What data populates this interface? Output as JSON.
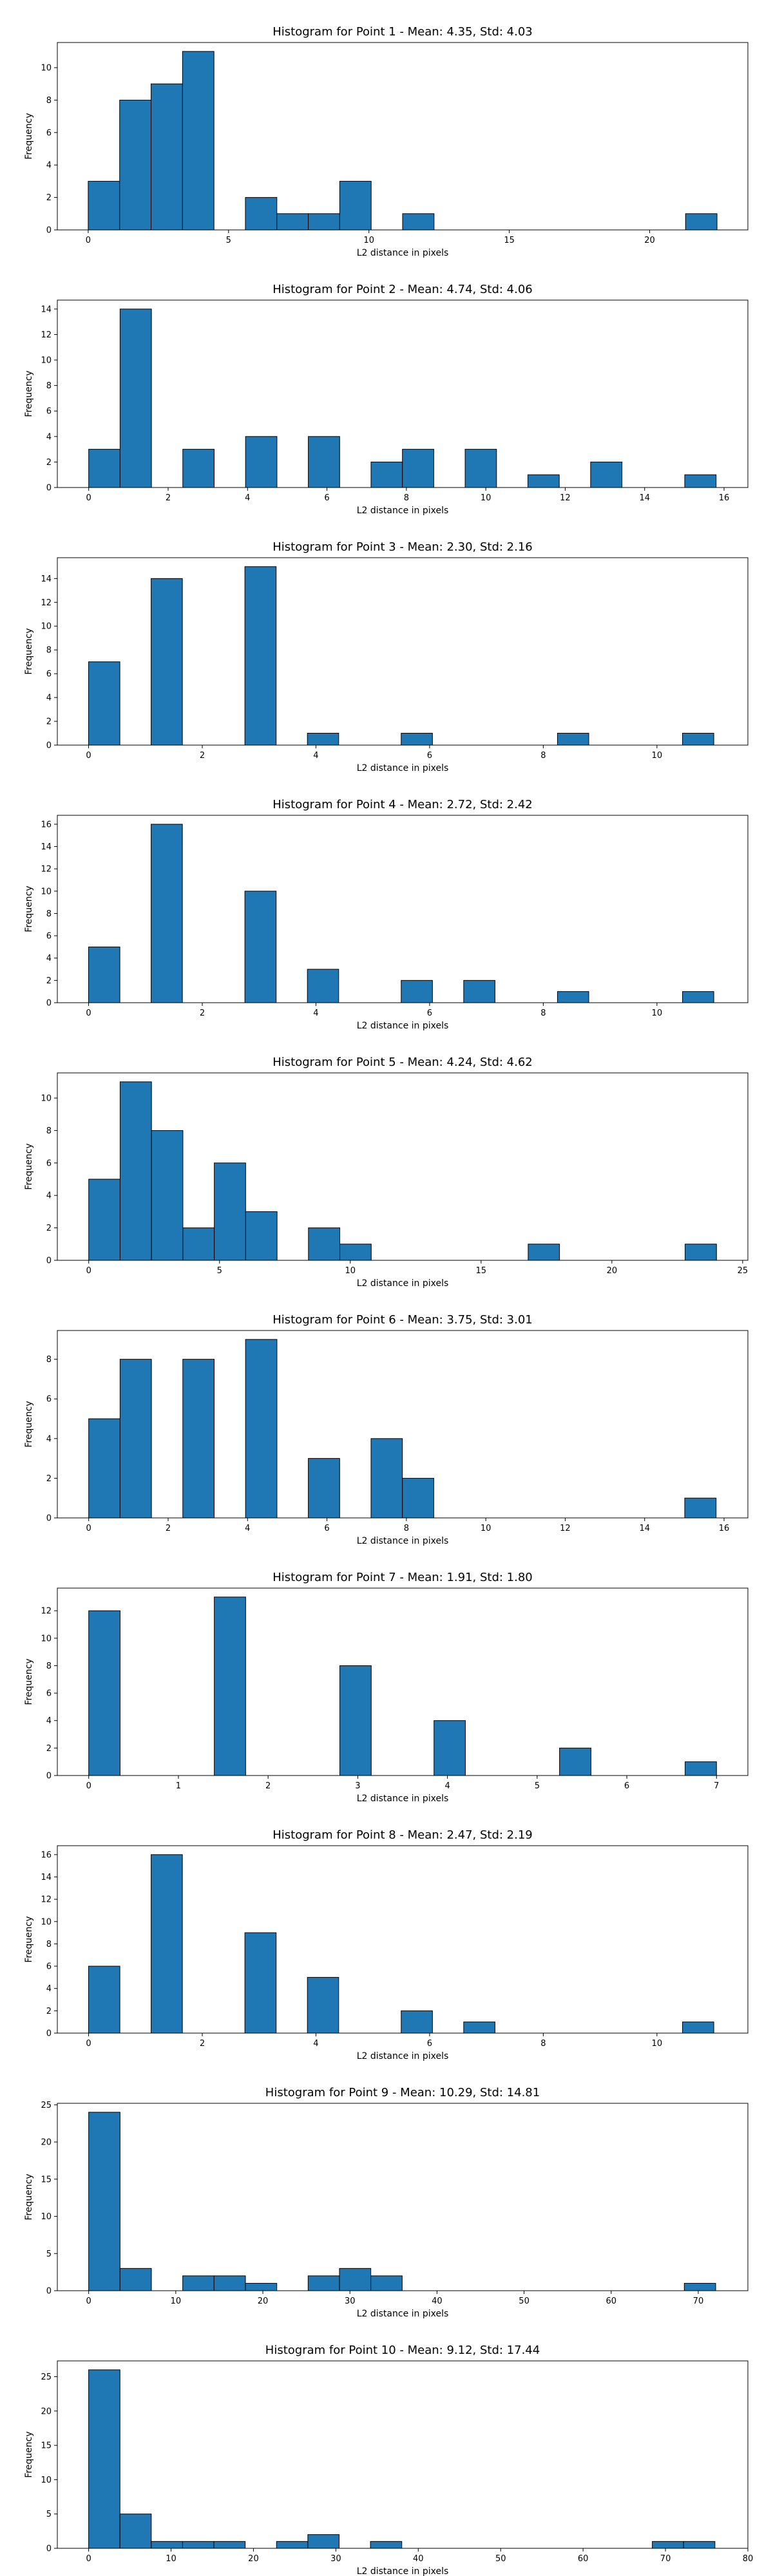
{
  "colors": {
    "bar_fill": "#1f77b4",
    "bar_edge": "#000000",
    "background": "#ffffff"
  },
  "chart_data": [
    {
      "type": "bar",
      "title": "Histogram for Point 1 - Mean: 4.35, Std: 4.03",
      "xlabel": "L2 distance in pixels",
      "ylabel": "Frequency",
      "xlim": [
        -1.1,
        23.5
      ],
      "ylim": [
        0,
        11.55
      ],
      "xticks": [
        0,
        5,
        10,
        15,
        20
      ],
      "yticks": [
        0,
        2,
        4,
        6,
        8,
        10
      ],
      "bin_edges": [
        0,
        1.12,
        2.24,
        3.36,
        4.48,
        5.6,
        6.72,
        7.84,
        8.96,
        10.08,
        11.2,
        12.32,
        13.44,
        14.56,
        15.68,
        16.8,
        17.92,
        19.04,
        20.16,
        21.28,
        22.4
      ],
      "values": [
        3,
        8,
        9,
        11,
        0,
        2,
        1,
        1,
        3,
        0,
        1,
        0,
        0,
        0,
        0,
        0,
        0,
        0,
        0,
        1
      ]
    },
    {
      "type": "bar",
      "title": "Histogram for Point 2 - Mean: 4.74, Std: 4.06",
      "xlabel": "L2 distance in pixels",
      "ylabel": "Frequency",
      "xlim": [
        -0.79,
        16.6
      ],
      "ylim": [
        0,
        14.7
      ],
      "xticks": [
        0,
        2,
        4,
        6,
        8,
        10,
        12,
        14,
        16
      ],
      "yticks": [
        0,
        2,
        4,
        6,
        8,
        10,
        12,
        14
      ],
      "bin_edges": [
        0,
        0.79,
        1.58,
        2.37,
        3.16,
        3.95,
        4.74,
        5.53,
        6.32,
        7.11,
        7.9,
        8.69,
        9.48,
        10.27,
        11.06,
        11.85,
        12.64,
        13.43,
        14.22,
        15.01,
        15.8
      ],
      "values": [
        3,
        14,
        0,
        3,
        0,
        4,
        0,
        4,
        0,
        2,
        3,
        0,
        3,
        0,
        1,
        0,
        2,
        0,
        0,
        1
      ]
    },
    {
      "type": "bar",
      "title": "Histogram for Point 3 - Mean: 2.30, Std: 2.16",
      "xlabel": "L2 distance in pixels",
      "ylabel": "Frequency",
      "xlim": [
        -0.55,
        11.6
      ],
      "ylim": [
        0,
        15.75
      ],
      "xticks": [
        0,
        2,
        4,
        6,
        8,
        10
      ],
      "yticks": [
        0,
        2,
        4,
        6,
        8,
        10,
        12,
        14
      ],
      "bin_edges": [
        0,
        0.55,
        1.1,
        1.65,
        2.2,
        2.75,
        3.3,
        3.85,
        4.4,
        4.95,
        5.5,
        6.05,
        6.6,
        7.15,
        7.7,
        8.25,
        8.8,
        9.35,
        9.9,
        10.45,
        11.0
      ],
      "values": [
        7,
        0,
        14,
        0,
        0,
        15,
        0,
        1,
        0,
        0,
        1,
        0,
        0,
        0,
        0,
        1,
        0,
        0,
        0,
        1
      ]
    },
    {
      "type": "bar",
      "title": "Histogram for Point 4 - Mean: 2.72, Std: 2.42",
      "xlabel": "L2 distance in pixels",
      "ylabel": "Frequency",
      "xlim": [
        -0.55,
        11.6
      ],
      "ylim": [
        0,
        16.8
      ],
      "xticks": [
        0,
        2,
        4,
        6,
        8,
        10
      ],
      "yticks": [
        0,
        2,
        4,
        6,
        8,
        10,
        12,
        14,
        16
      ],
      "bin_edges": [
        0,
        0.55,
        1.1,
        1.65,
        2.2,
        2.75,
        3.3,
        3.85,
        4.4,
        4.95,
        5.5,
        6.05,
        6.6,
        7.15,
        7.7,
        8.25,
        8.8,
        9.35,
        9.9,
        10.45,
        11.0
      ],
      "values": [
        5,
        0,
        16,
        0,
        0,
        10,
        0,
        3,
        0,
        0,
        2,
        0,
        2,
        0,
        0,
        1,
        0,
        0,
        0,
        1
      ]
    },
    {
      "type": "bar",
      "title": "Histogram for Point 5 - Mean: 4.24, Std: 4.62",
      "xlabel": "L2 distance in pixels",
      "ylabel": "Frequency",
      "xlim": [
        -1.2,
        25.2
      ],
      "ylim": [
        0,
        11.55
      ],
      "xticks": [
        0,
        5,
        10,
        15,
        20,
        25
      ],
      "yticks": [
        0,
        2,
        4,
        6,
        8,
        10
      ],
      "bin_edges": [
        0,
        1.2,
        2.4,
        3.6,
        4.8,
        6.0,
        7.2,
        8.4,
        9.6,
        10.8,
        12.0,
        13.2,
        14.4,
        15.6,
        16.8,
        18.0,
        19.2,
        20.4,
        21.6,
        22.8,
        24.0
      ],
      "values": [
        5,
        11,
        8,
        2,
        6,
        3,
        0,
        2,
        1,
        0,
        0,
        0,
        0,
        0,
        1,
        0,
        0,
        0,
        0,
        1
      ]
    },
    {
      "type": "bar",
      "title": "Histogram for Point 6 - Mean: 3.75, Std: 3.01",
      "xlabel": "L2 distance in pixels",
      "ylabel": "Frequency",
      "xlim": [
        -0.79,
        16.6
      ],
      "ylim": [
        0,
        9.45
      ],
      "xticks": [
        0,
        2,
        4,
        6,
        8,
        10,
        12,
        14,
        16
      ],
      "yticks": [
        0,
        2,
        4,
        6,
        8
      ],
      "bin_edges": [
        0,
        0.79,
        1.58,
        2.37,
        3.16,
        3.95,
        4.74,
        5.53,
        6.32,
        7.11,
        7.9,
        8.69,
        9.48,
        10.27,
        11.06,
        11.85,
        12.64,
        13.43,
        14.22,
        15.01,
        15.8
      ],
      "values": [
        5,
        8,
        0,
        8,
        0,
        9,
        0,
        3,
        0,
        4,
        2,
        0,
        0,
        0,
        0,
        0,
        0,
        0,
        0,
        1
      ]
    },
    {
      "type": "bar",
      "title": "Histogram for Point 7 - Mean: 1.91, Std: 1.80",
      "xlabel": "L2 distance in pixels",
      "ylabel": "Frequency",
      "xlim": [
        -0.35,
        7.35
      ],
      "ylim": [
        0,
        13.65
      ],
      "xticks": [
        0,
        1,
        2,
        3,
        4,
        5,
        6,
        7
      ],
      "yticks": [
        0,
        2,
        4,
        6,
        8,
        10,
        12
      ],
      "bin_edges": [
        0,
        0.35,
        0.7,
        1.05,
        1.4,
        1.75,
        2.1,
        2.45,
        2.8,
        3.15,
        3.5,
        3.85,
        4.2,
        4.55,
        4.9,
        5.25,
        5.6,
        5.95,
        6.3,
        6.65,
        7.0
      ],
      "values": [
        12,
        0,
        0,
        0,
        13,
        0,
        0,
        0,
        8,
        0,
        0,
        4,
        0,
        0,
        0,
        2,
        0,
        0,
        0,
        1
      ]
    },
    {
      "type": "bar",
      "title": "Histogram for Point 8 - Mean: 2.47, Std: 2.19",
      "xlabel": "L2 distance in pixels",
      "ylabel": "Frequency",
      "xlim": [
        -0.55,
        11.6
      ],
      "ylim": [
        0,
        16.8
      ],
      "xticks": [
        0,
        2,
        4,
        6,
        8,
        10
      ],
      "yticks": [
        0,
        2,
        4,
        6,
        8,
        10,
        12,
        14,
        16
      ],
      "bin_edges": [
        0,
        0.55,
        1.1,
        1.65,
        2.2,
        2.75,
        3.3,
        3.85,
        4.4,
        4.95,
        5.5,
        6.05,
        6.6,
        7.15,
        7.7,
        8.25,
        8.8,
        9.35,
        9.9,
        10.45,
        11.0
      ],
      "values": [
        6,
        0,
        16,
        0,
        0,
        9,
        0,
        5,
        0,
        0,
        2,
        0,
        1,
        0,
        0,
        0,
        0,
        0,
        0,
        1
      ]
    },
    {
      "type": "bar",
      "title": "Histogram for Point 9 - Mean: 10.29, Std: 14.81",
      "xlabel": "L2 distance in pixels",
      "ylabel": "Frequency",
      "xlim": [
        -3.6,
        75.7
      ],
      "ylim": [
        0,
        25.2
      ],
      "xticks": [
        0,
        10,
        20,
        30,
        40,
        50,
        60,
        70
      ],
      "yticks": [
        0,
        5,
        10,
        15,
        20,
        25
      ],
      "bin_edges": [
        0,
        3.6,
        7.2,
        10.8,
        14.4,
        18.0,
        21.6,
        25.2,
        28.8,
        32.4,
        36.0,
        39.6,
        43.2,
        46.8,
        50.4,
        54.0,
        57.6,
        61.2,
        64.8,
        68.4,
        72.0
      ],
      "values": [
        24,
        3,
        0,
        2,
        2,
        1,
        0,
        2,
        3,
        2,
        0,
        0,
        0,
        0,
        0,
        0,
        0,
        0,
        0,
        1
      ]
    },
    {
      "type": "bar",
      "title": "Histogram for Point 10 - Mean: 9.12, Std: 17.44",
      "xlabel": "L2 distance in pixels",
      "ylabel": "Frequency",
      "xlim": [
        -3.8,
        80
      ],
      "ylim": [
        0,
        27.3
      ],
      "xticks": [
        0,
        10,
        20,
        30,
        40,
        50,
        60,
        70,
        80
      ],
      "yticks": [
        0,
        5,
        10,
        15,
        20,
        25
      ],
      "bin_edges": [
        0,
        3.8,
        7.6,
        11.4,
        15.2,
        19.0,
        22.8,
        26.6,
        30.4,
        34.2,
        38.0,
        41.8,
        45.6,
        49.4,
        53.2,
        57.0,
        60.8,
        64.6,
        68.4,
        72.2,
        76.0
      ],
      "values": [
        26,
        5,
        1,
        1,
        1,
        0,
        1,
        2,
        0,
        1,
        0,
        0,
        0,
        0,
        0,
        0,
        0,
        0,
        1,
        1
      ]
    }
  ]
}
